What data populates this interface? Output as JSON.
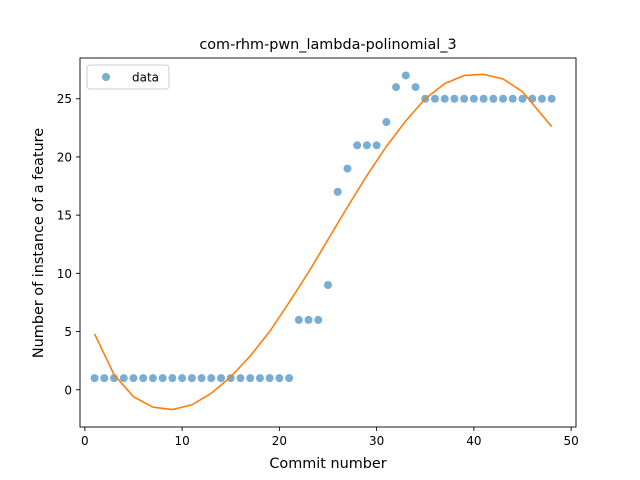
{
  "chart_data": {
    "type": "scatter",
    "title": "com-rhm-pwn_lambda-polinomial_3",
    "xlabel": "Commit number",
    "ylabel": "Number of instance of a feature",
    "xlim": [
      -0.5,
      50.5
    ],
    "ylim": [
      -3.2,
      28.5
    ],
    "xticks": [
      0,
      10,
      20,
      30,
      40,
      50
    ],
    "yticks": [
      0,
      5,
      10,
      15,
      20,
      25
    ],
    "grid": false,
    "legend": {
      "placement": "top-left",
      "entries": [
        "data"
      ]
    },
    "series": [
      {
        "name": "data",
        "kind": "points",
        "color": "#1f77b4",
        "x": [
          1,
          2,
          3,
          4,
          5,
          6,
          7,
          8,
          9,
          10,
          11,
          12,
          13,
          14,
          15,
          16,
          17,
          18,
          19,
          20,
          21,
          22,
          23,
          24,
          25,
          26,
          27,
          28,
          29,
          30,
          31,
          32,
          33,
          34,
          35,
          36,
          37,
          38,
          39,
          40,
          41,
          42,
          43,
          44,
          45,
          46,
          47,
          48
        ],
        "y": [
          1,
          1,
          1,
          1,
          1,
          1,
          1,
          1,
          1,
          1,
          1,
          1,
          1,
          1,
          1,
          1,
          1,
          1,
          1,
          1,
          1,
          6,
          6,
          6,
          9,
          17,
          19,
          21,
          21,
          21,
          23,
          26,
          27,
          26,
          25,
          25,
          25,
          25,
          25,
          25,
          25,
          25,
          25,
          25,
          25,
          25,
          25,
          25
        ]
      },
      {
        "kind": "line",
        "color": "#ff7f0e",
        "x": [
          1,
          3,
          5,
          7,
          9,
          11,
          13,
          15,
          17,
          19,
          21,
          23,
          25,
          27,
          29,
          31,
          33,
          35,
          37,
          39,
          41,
          43,
          45,
          47,
          48
        ],
        "y": [
          4.8,
          1.3,
          -0.6,
          -1.5,
          -1.7,
          -1.3,
          -0.3,
          1.1,
          2.9,
          5.0,
          7.5,
          10.1,
          12.9,
          15.7,
          18.4,
          20.9,
          23.1,
          25.0,
          26.3,
          27.0,
          27.1,
          26.7,
          25.6,
          23.6,
          22.6
        ]
      }
    ]
  }
}
